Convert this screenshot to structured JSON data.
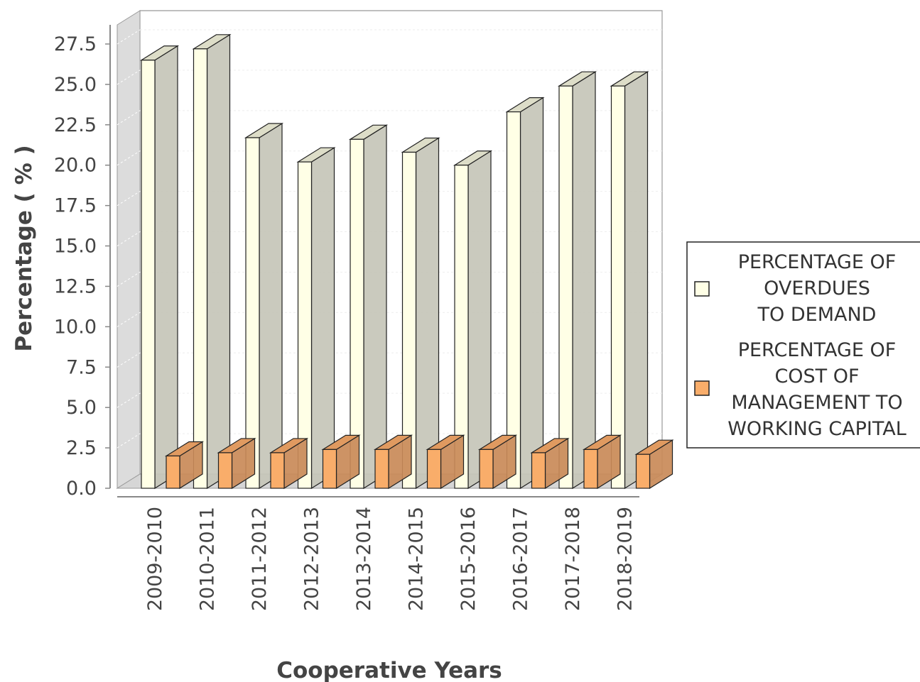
{
  "chart_data": {
    "type": "bar",
    "style": "3d-clustered",
    "title": "",
    "xlabel": "Cooperative Years",
    "ylabel": "Percentage ( % )",
    "ylim": [
      0,
      27.5
    ],
    "ytick_values": [
      0,
      2.5,
      5,
      7.5,
      10,
      12.5,
      15,
      17.5,
      20,
      22.5,
      25,
      27.5
    ],
    "ytick_labels": [
      "0.0",
      "2.5",
      "5.0",
      "7.5",
      "10.0",
      "12.5",
      "15.0",
      "17.5",
      "20.0",
      "22.5",
      "25.0",
      "27.5"
    ],
    "grid": true,
    "legend_position": "right",
    "categories": [
      "2009-2010",
      "2010-2011",
      "2011-2012",
      "2012-2013",
      "2013-2014",
      "2014-2015",
      "2015-2016",
      "2016-2017",
      "2017-2018",
      "2018-2019"
    ],
    "series": [
      {
        "name": "PERCENTAGE OF OVERDUES TO DEMAND",
        "legend_lines": [
          "PERCENTAGE OF",
          "OVERDUES",
          "TO DEMAND"
        ],
        "color": "#ffffe6",
        "side_color": "#c6c6b8",
        "values": [
          26.5,
          27.2,
          21.7,
          20.2,
          21.6,
          20.8,
          20.0,
          23.3,
          24.9,
          24.9
        ]
      },
      {
        "name": "PERCENTAGE OF COST OF MANAGEMENT TO WORKING CAPITAL",
        "legend_lines": [
          "PERCENTAGE OF",
          "COST OF",
          "MANAGEMENT TO",
          "WORKING CAPITAL"
        ],
        "color": "#f9ad6a",
        "side_color": "#c98a58",
        "values": [
          2.0,
          2.2,
          2.2,
          2.4,
          2.4,
          2.4,
          2.4,
          2.2,
          2.4,
          2.1
        ]
      }
    ]
  }
}
